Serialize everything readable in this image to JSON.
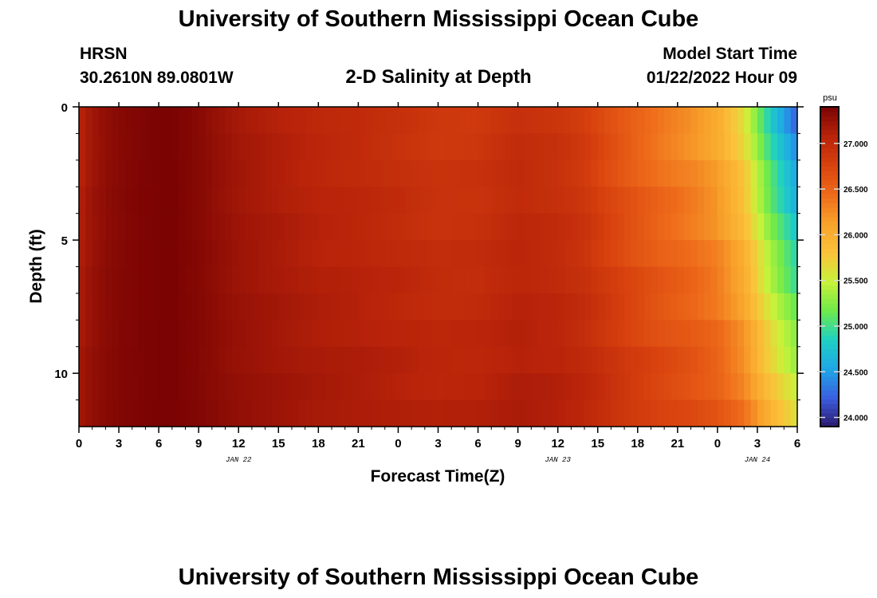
{
  "header": {
    "title": "University of Southern Mississippi Ocean Cube",
    "station": "HRSN",
    "coords": "30.2610N  89.0801W",
    "plot_title": "2-D Salinity at Depth",
    "model_start_label": "Model Start Time",
    "model_start_value": "01/22/2022 Hour 09"
  },
  "footer": {
    "title": "University of Southern Mississippi Ocean Cube"
  },
  "chart_data": {
    "type": "heatmap",
    "title": "2-D Salinity at Depth",
    "xlabel": "Forecast Time(Z)",
    "ylabel": "Depth (ft)",
    "x_range_hours": [
      0,
      54
    ],
    "y_range_ft": [
      0,
      12
    ],
    "x_ticks": [
      {
        "h": 0,
        "label": "0"
      },
      {
        "h": 3,
        "label": "3"
      },
      {
        "h": 6,
        "label": "6"
      },
      {
        "h": 9,
        "label": "9"
      },
      {
        "h": 12,
        "label": "12"
      },
      {
        "h": 15,
        "label": "15"
      },
      {
        "h": 18,
        "label": "18"
      },
      {
        "h": 21,
        "label": "21"
      },
      {
        "h": 24,
        "label": "0"
      },
      {
        "h": 27,
        "label": "3"
      },
      {
        "h": 30,
        "label": "6"
      },
      {
        "h": 33,
        "label": "9"
      },
      {
        "h": 36,
        "label": "12"
      },
      {
        "h": 39,
        "label": "15"
      },
      {
        "h": 42,
        "label": "18"
      },
      {
        "h": 45,
        "label": "21"
      },
      {
        "h": 48,
        "label": "0"
      },
      {
        "h": 51,
        "label": "3"
      },
      {
        "h": 54,
        "label": "6"
      }
    ],
    "date_labels": [
      {
        "h": 12,
        "label": "JAN 22"
      },
      {
        "h": 36,
        "label": "JAN 23"
      },
      {
        "h": 51,
        "label": "JAN 24"
      }
    ],
    "y_ticks": [
      {
        "v": 0,
        "label": "0"
      },
      {
        "v": 5,
        "label": "5"
      },
      {
        "v": 10,
        "label": "10"
      }
    ],
    "colorbar": {
      "units": "psu",
      "range": [
        23.9,
        27.4
      ],
      "ticks": [
        {
          "v": 24.0,
          "label": "24.000"
        },
        {
          "v": 24.5,
          "label": "24.500"
        },
        {
          "v": 25.0,
          "label": "25.000"
        },
        {
          "v": 25.5,
          "label": "25.500"
        },
        {
          "v": 26.0,
          "label": "26.000"
        },
        {
          "v": 26.5,
          "label": "26.500"
        },
        {
          "v": 27.0,
          "label": "27.000"
        }
      ],
      "colors": [
        "#2b1a6e",
        "#3b5ee0",
        "#1ea7e6",
        "#1fd0c3",
        "#6fea4a",
        "#c9f23a",
        "#fbc23a",
        "#f8a22b",
        "#ee6a1a",
        "#d8420e",
        "#b8230a",
        "#7a0303"
      ]
    },
    "time_profile": [
      {
        "h": 0,
        "s": 27.05
      },
      {
        "h": 1,
        "s": 27.2
      },
      {
        "h": 2,
        "s": 27.28
      },
      {
        "h": 3,
        "s": 27.33
      },
      {
        "h": 5,
        "s": 27.38
      },
      {
        "h": 7,
        "s": 27.4
      },
      {
        "h": 9,
        "s": 27.33
      },
      {
        "h": 12,
        "s": 27.18
      },
      {
        "h": 15,
        "s": 27.1
      },
      {
        "h": 18,
        "s": 27.02
      },
      {
        "h": 21,
        "s": 26.98
      },
      {
        "h": 24,
        "s": 26.92
      },
      {
        "h": 27,
        "s": 26.85
      },
      {
        "h": 30,
        "s": 26.86
      },
      {
        "h": 33,
        "s": 26.96
      },
      {
        "h": 36,
        "s": 26.9
      },
      {
        "h": 38,
        "s": 26.8
      },
      {
        "h": 40,
        "s": 26.62
      },
      {
        "h": 42,
        "s": 26.45
      },
      {
        "h": 44,
        "s": 26.3
      },
      {
        "h": 46,
        "s": 26.18
      },
      {
        "h": 48,
        "s": 26.0
      },
      {
        "h": 50,
        "s": 25.6
      },
      {
        "h": 51,
        "s": 25.2
      },
      {
        "h": 52,
        "s": 24.8
      },
      {
        "h": 53,
        "s": 24.5
      },
      {
        "h": 54,
        "s": 24.2
      }
    ],
    "depth_effect": "salinity increases with depth; at 12 ft the surface freshening is reduced by about 45 percent"
  },
  "colors": {
    "frame": "#000000",
    "background": "#ffffff"
  }
}
